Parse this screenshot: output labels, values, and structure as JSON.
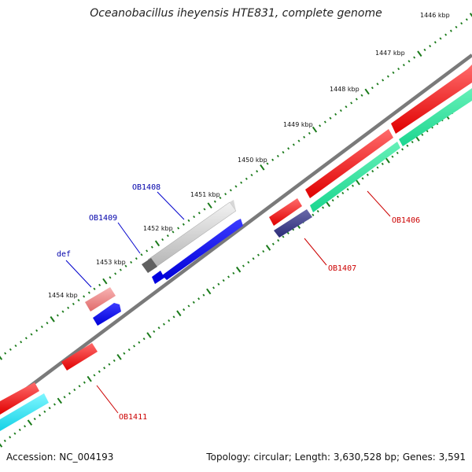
{
  "title": "Oceanobacillus iheyensis HTE831, complete genome",
  "footer": {
    "accession": "Accession: NC_004193",
    "summary": "Topology: circular; Length: 3,630,528 bp; Genes: 3,591"
  },
  "colors": {
    "backbone": "#808080",
    "tick": "#1a7a1a",
    "label_forward": "#0000aa",
    "label_reverse": "#cc0000",
    "leader_forward": "#0000cc",
    "leader_reverse": "#cc0000"
  },
  "scale_ticks": [
    "1446 kbp",
    "1447 kbp",
    "1448 kbp",
    "1449 kbp",
    "1450 kbp",
    "1451 kbp",
    "1452 kbp",
    "1453 kbp",
    "1454 kbp"
  ],
  "gene_labels": {
    "OB1408": "OB1408",
    "OB1409": "OB1409",
    "def": "def",
    "OB1406": "OB1406",
    "OB1407": "OB1407",
    "OB1411": "OB1411"
  }
}
